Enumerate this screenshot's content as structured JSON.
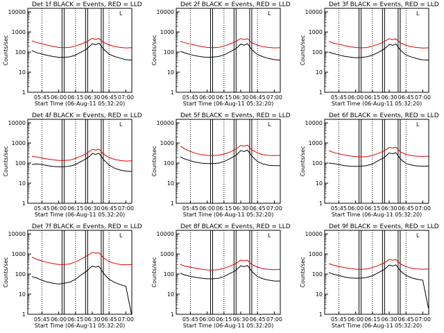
{
  "figure": {
    "xlabel": "Start Time (06-Aug-11 05:32:20)",
    "ylabel": "Counts/sec",
    "ytick_labels": [
      "1",
      "10",
      "100",
      "1000",
      "10000"
    ],
    "xtick_labels": [
      "05:45",
      "06:00",
      "06:15",
      "06:30",
      "06:45",
      "07:00"
    ],
    "legend_glyph": "L",
    "colors": {
      "events": "#000000",
      "lld": "#e00000",
      "axes": "#000000"
    }
  },
  "chart_data": [
    {
      "type": "line",
      "title": "Det 1f BLACK = Events, RED = LLD",
      "xlabel": "Start Time (06-Aug-11 05:32:20)",
      "ylabel": "Counts/sec",
      "y_scale": "log",
      "ylim": [
        1,
        15000
      ],
      "x": [
        "05:36",
        "05:40",
        "05:45",
        "05:50",
        "05:55",
        "06:00",
        "06:05",
        "06:10",
        "06:15",
        "06:20",
        "06:25",
        "06:28",
        "06:30",
        "06:33",
        "06:36",
        "06:40",
        "06:45",
        "06:50",
        "06:55",
        "07:00",
        "07:05"
      ],
      "series": [
        {
          "name": "Events",
          "color": "#000000",
          "values": [
            120,
            95,
            80,
            68,
            60,
            55,
            55,
            58,
            70,
            100,
            140,
            200,
            260,
            230,
            280,
            140,
            80,
            60,
            50,
            42,
            40
          ]
        },
        {
          "name": "LLD",
          "color": "#e00000",
          "values": [
            360,
            300,
            260,
            220,
            190,
            170,
            165,
            170,
            200,
            250,
            320,
            420,
            480,
            430,
            470,
            300,
            230,
            190,
            170,
            160,
            165
          ]
        }
      ]
    },
    {
      "type": "line",
      "title": "Det 2f BLACK = Events, RED = LLD",
      "xlabel": "Start Time (06-Aug-11 05:32:20)",
      "ylabel": "Counts/sec",
      "y_scale": "log",
      "ylim": [
        1,
        15000
      ],
      "x": [
        "05:36",
        "05:40",
        "05:45",
        "05:50",
        "05:55",
        "06:00",
        "06:05",
        "06:10",
        "06:15",
        "06:20",
        "06:25",
        "06:28",
        "06:30",
        "06:33",
        "06:36",
        "06:40",
        "06:45",
        "06:50",
        "06:55",
        "07:00",
        "07:05"
      ],
      "series": [
        {
          "name": "Events",
          "color": "#000000",
          "values": [
            110,
            90,
            75,
            65,
            58,
            55,
            56,
            60,
            72,
            100,
            140,
            190,
            250,
            220,
            260,
            130,
            75,
            58,
            48,
            42,
            40
          ]
        },
        {
          "name": "LLD",
          "color": "#e00000",
          "values": [
            350,
            290,
            250,
            215,
            190,
            170,
            165,
            170,
            200,
            250,
            320,
            410,
            470,
            420,
            460,
            290,
            220,
            185,
            170,
            160,
            165
          ]
        }
      ]
    },
    {
      "type": "line",
      "title": "Det 3f BLACK = Events, RED = LLD",
      "xlabel": "Start Time (06-Aug-11 05:32:20)",
      "ylabel": "Counts/sec",
      "y_scale": "log",
      "ylim": [
        1,
        15000
      ],
      "x": [
        "05:36",
        "05:40",
        "05:45",
        "05:50",
        "05:55",
        "06:00",
        "06:05",
        "06:10",
        "06:15",
        "06:20",
        "06:25",
        "06:28",
        "06:30",
        "06:33",
        "06:36",
        "06:40",
        "06:45",
        "06:50",
        "06:55",
        "07:00",
        "07:05"
      ],
      "series": [
        {
          "name": "Events",
          "color": "#000000",
          "values": [
            100,
            85,
            72,
            62,
            56,
            52,
            54,
            58,
            70,
            95,
            135,
            185,
            240,
            215,
            255,
            125,
            72,
            56,
            47,
            41,
            40
          ]
        },
        {
          "name": "LLD",
          "color": "#e00000",
          "values": [
            340,
            280,
            245,
            210,
            185,
            168,
            162,
            168,
            198,
            245,
            315,
            400,
            460,
            415,
            450,
            285,
            218,
            182,
            168,
            158,
            162
          ]
        }
      ]
    },
    {
      "type": "line",
      "title": "Det 4f BLACK = Events, RED = LLD",
      "xlabel": "Start Time (06-Aug-11 05:32:20)",
      "ylabel": "Counts/sec",
      "y_scale": "log",
      "ylim": [
        1,
        15000
      ],
      "x": [
        "05:36",
        "05:40",
        "05:45",
        "05:50",
        "05:55",
        "06:00",
        "06:05",
        "06:10",
        "06:15",
        "06:20",
        "06:25",
        "06:28",
        "06:30",
        "06:33",
        "06:36",
        "06:40",
        "06:45",
        "06:50",
        "06:55",
        "07:00",
        "07:05"
      ],
      "series": [
        {
          "name": "Events",
          "color": "#000000",
          "values": [
            85,
            90,
            85,
            75,
            68,
            65,
            66,
            70,
            85,
            120,
            170,
            230,
            300,
            270,
            310,
            150,
            80,
            55,
            45,
            40,
            38
          ]
        },
        {
          "name": "LLD",
          "color": "#e00000",
          "values": [
            220,
            200,
            180,
            160,
            145,
            135,
            135,
            140,
            170,
            220,
            300,
            400,
            480,
            440,
            500,
            280,
            190,
            150,
            135,
            125,
            130
          ]
        }
      ]
    },
    {
      "type": "line",
      "title": "Det 5f BLACK = Events, RED = LLD",
      "xlabel": "Start Time (06-Aug-11 05:32:20)",
      "ylabel": "Counts/sec",
      "y_scale": "log",
      "ylim": [
        1,
        15000
      ],
      "x": [
        "05:36",
        "05:40",
        "05:45",
        "05:50",
        "05:55",
        "06:00",
        "06:05",
        "06:10",
        "06:15",
        "06:20",
        "06:25",
        "06:28",
        "06:30",
        "06:33",
        "06:36",
        "06:40",
        "06:45",
        "06:50",
        "06:55",
        "07:00",
        "07:05"
      ],
      "series": [
        {
          "name": "Events",
          "color": "#000000",
          "values": [
            200,
            160,
            130,
            110,
            100,
            95,
            95,
            100,
            120,
            160,
            230,
            320,
            420,
            380,
            440,
            220,
            120,
            90,
            78,
            75,
            75
          ]
        },
        {
          "name": "LLD",
          "color": "#e00000",
          "values": [
            700,
            500,
            380,
            300,
            260,
            240,
            235,
            245,
            280,
            350,
            470,
            620,
            760,
            700,
            780,
            450,
            320,
            260,
            240,
            235,
            240
          ]
        }
      ]
    },
    {
      "type": "line",
      "title": "Det 6f BLACK = Events, RED = LLD",
      "xlabel": "Start Time (06-Aug-11 05:32:20)",
      "ylabel": "Counts/sec",
      "y_scale": "log",
      "ylim": [
        1,
        15000
      ],
      "x": [
        "05:36",
        "05:40",
        "05:45",
        "05:50",
        "05:55",
        "06:00",
        "06:05",
        "06:10",
        "06:15",
        "06:20",
        "06:25",
        "06:28",
        "06:30",
        "06:33",
        "06:36",
        "06:40",
        "06:45",
        "06:50",
        "06:55",
        "07:00",
        "07:05"
      ],
      "series": [
        {
          "name": "Events",
          "color": "#000000",
          "values": [
            100,
            95,
            85,
            75,
            70,
            68,
            70,
            75,
            90,
            130,
            180,
            250,
            320,
            290,
            330,
            160,
            95,
            80,
            72,
            70,
            70
          ]
        },
        {
          "name": "LLD",
          "color": "#e00000",
          "values": [
            420,
            340,
            290,
            250,
            225,
            210,
            205,
            210,
            240,
            300,
            390,
            500,
            600,
            560,
            620,
            360,
            270,
            235,
            220,
            215,
            220
          ]
        }
      ]
    },
    {
      "type": "line",
      "title": "Det 7f BLACK = Events, RED = LLD",
      "xlabel": "Start Time (06-Aug-11 05:32:20)",
      "ylabel": "Counts/sec",
      "y_scale": "log",
      "ylim": [
        1,
        15000
      ],
      "x": [
        "05:36",
        "05:40",
        "05:45",
        "05:50",
        "05:55",
        "06:00",
        "06:05",
        "06:10",
        "06:15",
        "06:20",
        "06:25",
        "06:28",
        "06:30",
        "06:33",
        "06:36",
        "06:40",
        "06:45",
        "06:50",
        "06:55",
        "07:00",
        "07:05"
      ],
      "series": [
        {
          "name": "Events",
          "color": "#000000",
          "values": [
            75,
            65,
            50,
            40,
            35,
            32,
            35,
            40,
            55,
            90,
            140,
            200,
            250,
            220,
            240,
            110,
            55,
            38,
            30,
            25,
            1
          ]
        },
        {
          "name": "LLD",
          "color": "#e00000",
          "values": [
            700,
            550,
            450,
            380,
            330,
            300,
            300,
            320,
            400,
            550,
            800,
            1000,
            1200,
            1100,
            1150,
            650,
            420,
            340,
            300,
            290,
            300
          ]
        }
      ]
    },
    {
      "type": "line",
      "title": "Det 8f BLACK = Events, RED = LLD",
      "xlabel": "Start Time (06-Aug-11 05:32:20)",
      "ylabel": "Counts/sec",
      "y_scale": "log",
      "ylim": [
        1,
        15000
      ],
      "x": [
        "05:36",
        "05:40",
        "05:45",
        "05:50",
        "05:55",
        "06:00",
        "06:05",
        "06:10",
        "06:15",
        "06:20",
        "06:25",
        "06:28",
        "06:30",
        "06:33",
        "06:36",
        "06:40",
        "06:45",
        "06:50",
        "06:55",
        "07:00",
        "07:05"
      ],
      "series": [
        {
          "name": "Events",
          "color": "#000000",
          "values": [
            110,
            90,
            78,
            68,
            62,
            58,
            58,
            62,
            75,
            105,
            145,
            200,
            260,
            230,
            270,
            135,
            75,
            58,
            50,
            45,
            45
          ]
        },
        {
          "name": "LLD",
          "color": "#e00000",
          "values": [
            300,
            250,
            220,
            195,
            175,
            160,
            158,
            165,
            195,
            245,
            320,
            420,
            500,
            450,
            490,
            300,
            220,
            185,
            170,
            165,
            170
          ]
        }
      ]
    },
    {
      "type": "line",
      "title": "Det 9f BLACK = Events, RED = LLD",
      "xlabel": "Start Time (06-Aug-11 05:32:20)",
      "ylabel": "Counts/sec",
      "y_scale": "log",
      "ylim": [
        1,
        15000
      ],
      "x": [
        "05:36",
        "05:40",
        "05:45",
        "05:50",
        "05:55",
        "06:00",
        "06:05",
        "06:10",
        "06:15",
        "06:20",
        "06:25",
        "06:28",
        "06:30",
        "06:33",
        "06:36",
        "06:40",
        "06:45",
        "06:50",
        "06:55",
        "07:00",
        "07:05"
      ],
      "series": [
        {
          "name": "Events",
          "color": "#000000",
          "values": [
            120,
            100,
            85,
            72,
            65,
            62,
            63,
            68,
            82,
            115,
            160,
            220,
            280,
            250,
            290,
            145,
            85,
            65,
            55,
            50,
            2
          ]
        },
        {
          "name": "LLD",
          "color": "#e00000",
          "values": [
            330,
            280,
            240,
            210,
            190,
            175,
            172,
            180,
            210,
            265,
            345,
            450,
            540,
            490,
            530,
            320,
            235,
            195,
            180,
            175,
            180
          ]
        }
      ]
    }
  ]
}
